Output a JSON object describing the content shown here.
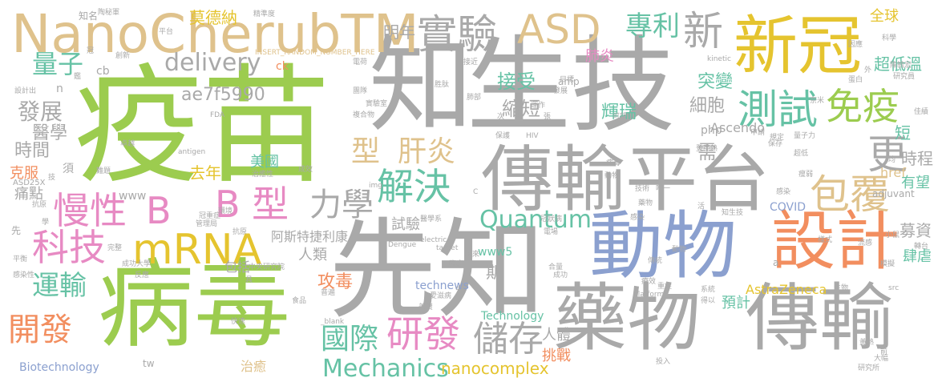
{
  "palette": {
    "gray": "#a9a9a9",
    "green": "#9ccc4f",
    "tan": "#dfc28c",
    "blue": "#8ba0cf",
    "orange": "#f28e5f",
    "teal": "#66c2a5",
    "pink": "#e78ac3",
    "yellow": "#e5c42f"
  },
  "words": [
    {
      "text": "疫苗",
      "color": "green"
    },
    {
      "text": "病毒",
      "color": "green"
    },
    {
      "text": "生技",
      "color": "gray"
    },
    {
      "text": "知",
      "color": "gray"
    },
    {
      "text": "先知",
      "color": "gray"
    },
    {
      "text": "傳輸平台",
      "color": "gray"
    },
    {
      "text": "藥物",
      "color": "gray"
    },
    {
      "text": "傳輸",
      "color": "gray"
    },
    {
      "text": "動物",
      "color": "blue"
    },
    {
      "text": "新冠",
      "color": "yellow"
    },
    {
      "text": "NanoCherubTM",
      "color": "tan"
    },
    {
      "text": "設計",
      "color": "orange"
    },
    {
      "text": "實驗",
      "color": "gray"
    },
    {
      "text": "ASD",
      "color": "tan"
    },
    {
      "text": "新",
      "color": "gray"
    },
    {
      "text": "測試",
      "color": "teal"
    },
    {
      "text": "免疫",
      "color": "green"
    },
    {
      "text": "更",
      "color": "gray"
    },
    {
      "text": "包覆",
      "color": "tan"
    },
    {
      "text": "mRNA",
      "color": "yellow"
    },
    {
      "text": "慢性",
      "color": "pink"
    },
    {
      "text": "B",
      "color": "pink"
    },
    {
      "text": "B 型",
      "color": "pink"
    },
    {
      "text": "科技",
      "color": "pink"
    },
    {
      "text": "解決",
      "color": "teal"
    },
    {
      "text": "型",
      "color": "tan"
    },
    {
      "text": "肝炎",
      "color": "tan"
    },
    {
      "text": "力學",
      "color": "gray"
    },
    {
      "text": "量子",
      "color": "teal"
    },
    {
      "text": "delivery",
      "color": "gray"
    },
    {
      "text": "專利",
      "color": "teal"
    },
    {
      "text": "明年",
      "color": "gray"
    },
    {
      "text": "運輸",
      "color": "teal"
    },
    {
      "text": "開發",
      "color": "orange"
    },
    {
      "text": "研發",
      "color": "pink"
    },
    {
      "text": "國際",
      "color": "teal"
    },
    {
      "text": "儲存",
      "color": "gray"
    },
    {
      "text": "Quantum",
      "color": "teal"
    },
    {
      "text": "Mechanics",
      "color": "teal"
    },
    {
      "text": "發展",
      "color": "gray"
    },
    {
      "text": "ae7f5990",
      "color": "gray"
    },
    {
      "text": "接受",
      "color": "teal"
    },
    {
      "text": "縮短",
      "color": "gray"
    },
    {
      "text": "需",
      "color": "gray"
    },
    {
      "text": "突變",
      "color": "teal"
    },
    {
      "text": "細胞",
      "color": "gray"
    },
    {
      "text": "輝瑞",
      "color": "teal"
    },
    {
      "text": "超低溫",
      "color": "teal"
    },
    {
      "text": "全球",
      "color": "yellow"
    },
    {
      "text": "肺炎",
      "color": "pink"
    },
    {
      "text": "醫學",
      "color": "gray"
    },
    {
      "text": "時間",
      "color": "gray"
    },
    {
      "text": "克服",
      "color": "orange"
    },
    {
      "text": "痛點",
      "color": "gray"
    },
    {
      "text": "去年",
      "color": "yellow"
    },
    {
      "text": "美國",
      "color": "teal"
    },
    {
      "text": "時程",
      "color": "gray"
    },
    {
      "text": "有望",
      "color": "teal"
    },
    {
      "text": "募資",
      "color": "gray"
    },
    {
      "text": "肆虐",
      "color": "teal"
    },
    {
      "text": "短",
      "color": "teal"
    },
    {
      "text": "href",
      "color": "tan"
    },
    {
      "text": "Ascendo",
      "color": "gray"
    },
    {
      "text": "試驗",
      "color": "gray"
    },
    {
      "text": "阿斯特捷利康",
      "color": "gray"
    },
    {
      "text": "人類",
      "color": "gray"
    },
    {
      "text": "攻毒",
      "color": "orange"
    },
    {
      "text": "期",
      "color": "gray"
    },
    {
      "text": "www5",
      "color": "teal"
    },
    {
      "text": "technews",
      "color": "blue"
    },
    {
      "text": "Technology",
      "color": "teal"
    },
    {
      "text": "nanocomplex",
      "color": "yellow"
    },
    {
      "text": "人體",
      "color": "gray"
    },
    {
      "text": "挑戰",
      "color": "orange"
    },
    {
      "text": "預計",
      "color": "teal"
    },
    {
      "text": "AstraZeneca",
      "color": "yellow"
    },
    {
      "text": "COVID",
      "color": "blue"
    },
    {
      "text": "adjuvant",
      "color": "gray"
    },
    {
      "text": "Biotechnology",
      "color": "blue"
    },
    {
      "text": "治癒",
      "color": "tan"
    },
    {
      "text": "包括",
      "color": "gray"
    },
    {
      "text": "www",
      "color": "gray"
    },
    {
      "text": "ASD25X",
      "color": "gray"
    },
    {
      "text": "php",
      "color": "gray"
    },
    {
      "text": "amp",
      "color": "gray"
    },
    {
      "text": "莫德納",
      "color": "yellow"
    },
    {
      "text": "INSERT_RANDOM_NUMBER_HERE",
      "color": "tan"
    },
    {
      "text": "cb",
      "color": "gray"
    },
    {
      "text": "ck",
      "color": "orange"
    },
    {
      "text": "n",
      "color": "gray"
    },
    {
      "text": "知名",
      "color": "gray"
    },
    {
      "text": "陶秘軍",
      "color": "gray"
    },
    {
      "text": "精準度",
      "color": "gray"
    },
    {
      "text": "kinetic",
      "color": "gray"
    },
    {
      "text": "HIV",
      "color": "gray"
    },
    {
      "text": "electric",
      "color": "gray"
    },
    {
      "text": "target",
      "color": "gray"
    },
    {
      "text": "Dengue",
      "color": "gray"
    },
    {
      "text": "platform",
      "color": "gray"
    },
    {
      "text": "antigen",
      "color": "gray"
    },
    {
      "text": "img",
      "color": "gray"
    },
    {
      "text": "_blank",
      "color": "gray"
    },
    {
      "text": "tw",
      "color": "gray"
    },
    {
      "text": "src",
      "color": "gray"
    },
    {
      "text": "FDA",
      "color": "gray"
    },
    {
      "text": "複合物",
      "color": "gray"
    },
    {
      "text": "胜肽",
      "color": "gray"
    },
    {
      "text": "接近",
      "color": "gray"
    },
    {
      "text": "實驗室",
      "color": "gray"
    },
    {
      "text": "中央研究院",
      "color": "gray"
    },
    {
      "text": "成功大學",
      "color": "gray"
    },
    {
      "text": "感染性",
      "color": "gray"
    },
    {
      "text": "醫學系",
      "color": "gray"
    },
    {
      "text": "研究所",
      "color": "gray"
    },
    {
      "text": "知生技",
      "color": "gray"
    },
    {
      "text": "量子力",
      "color": "gray"
    },
    {
      "text": "感染",
      "color": "gray"
    },
    {
      "text": "電場",
      "color": "gray"
    },
    {
      "text": "冠狀病",
      "color": "gray"
    },
    {
      "text": "治癒性",
      "color": "gray"
    },
    {
      "text": "管理局",
      "color": "gray"
    },
    {
      "text": "冠重症",
      "color": "gray"
    },
    {
      "text": "抗原",
      "color": "gray"
    },
    {
      "text": "平衡",
      "color": "gray"
    },
    {
      "text": "快速",
      "color": "gray"
    },
    {
      "text": "投入",
      "color": "gray"
    },
    {
      "text": "成效",
      "color": "gray"
    },
    {
      "text": "完整",
      "color": "gray"
    },
    {
      "text": "反應",
      "color": "gray"
    },
    {
      "text": "食品",
      "color": "gray"
    },
    {
      "text": "普遍",
      "color": "gray"
    },
    {
      "text": "環境",
      "color": "gray"
    },
    {
      "text": "保護",
      "color": "gray"
    },
    {
      "text": "難題",
      "color": "gray"
    },
    {
      "text": "卓越",
      "color": "gray"
    },
    {
      "text": "創新",
      "color": "gray"
    },
    {
      "text": "運作",
      "color": "gray"
    },
    {
      "text": "未來",
      "color": "gray"
    },
    {
      "text": "成功",
      "color": "gray"
    },
    {
      "text": "臨床",
      "color": "gray"
    },
    {
      "text": "生物",
      "color": "gray"
    },
    {
      "text": "唯一",
      "color": "gray"
    },
    {
      "text": "得以",
      "color": "gray"
    },
    {
      "text": "規定",
      "color": "gray"
    },
    {
      "text": "科學",
      "color": "gray"
    },
    {
      "text": "陳毓宏",
      "color": "gray"
    },
    {
      "text": "佳績",
      "color": "gray"
    },
    {
      "text": "轉台",
      "color": "gray"
    },
    {
      "text": "小鼠",
      "color": "gray"
    },
    {
      "text": "樣式",
      "color": "gray"
    },
    {
      "text": "模擬",
      "color": "gray"
    },
    {
      "text": "因應",
      "color": "gray"
    },
    {
      "text": "蛋白",
      "color": "gray"
    },
    {
      "text": "外",
      "color": "gray"
    },
    {
      "text": "均",
      "color": "gray"
    },
    {
      "text": "可望",
      "color": "gray"
    },
    {
      "text": "申請",
      "color": "gray"
    },
    {
      "text": "超低",
      "color": "gray"
    },
    {
      "text": "發展",
      "color": "gray"
    },
    {
      "text": "重症",
      "color": "gray"
    },
    {
      "text": "肺部",
      "color": "gray"
    },
    {
      "text": "愛滋病",
      "color": "gray"
    },
    {
      "text": "黃熱",
      "color": "gray"
    },
    {
      "text": "登革熱",
      "color": "gray"
    },
    {
      "text": "流感",
      "color": "gray"
    },
    {
      "text": "平台",
      "color": "gray"
    },
    {
      "text": "冠",
      "color": "gray"
    },
    {
      "text": "須",
      "color": "gray"
    },
    {
      "text": "技",
      "color": "gray"
    },
    {
      "text": "先",
      "color": "gray"
    },
    {
      "text": "學",
      "color": "gray"
    },
    {
      "text": "鑑",
      "color": "gray"
    },
    {
      "text": "a",
      "color": "gray"
    },
    {
      "text": "C",
      "color": "gray"
    },
    {
      "text": "中",
      "color": "gray"
    },
    {
      "text": "次",
      "color": "gray"
    },
    {
      "text": "張",
      "color": "gray"
    },
    {
      "text": "具",
      "color": "gray"
    },
    {
      "text": "活",
      "color": "gray"
    },
    {
      "text": "前",
      "color": "gray"
    },
    {
      "text": "奈米",
      "color": "gray"
    },
    {
      "text": "研究員",
      "color": "gray"
    },
    {
      "text": "目標",
      "color": "gray"
    },
    {
      "text": "設計出",
      "color": "gray"
    },
    {
      "text": "電荷",
      "color": "gray"
    },
    {
      "text": "團隊",
      "color": "gray"
    },
    {
      "text": "動物",
      "color": "gray"
    },
    {
      "text": "抗原",
      "color": "gray"
    },
    {
      "text": "合量",
      "color": "gray"
    },
    {
      "text": "傳統",
      "color": "gray"
    },
    {
      "text": "保存",
      "color": "gray"
    },
    {
      "text": "瘦弱",
      "color": "gray"
    },
    {
      "text": "技術",
      "color": "gray"
    },
    {
      "text": "藥物",
      "color": "gray"
    },
    {
      "text": "病毒",
      "color": "gray"
    },
    {
      "text": "感染",
      "color": "gray"
    },
    {
      "text": "大幅",
      "color": "gray"
    },
    {
      "text": "療效",
      "color": "gray"
    },
    {
      "text": "系統",
      "color": "gray"
    },
    {
      "text": "動物",
      "color": "gray"
    },
    {
      "text": "美資",
      "color": "gray"
    }
  ]
}
